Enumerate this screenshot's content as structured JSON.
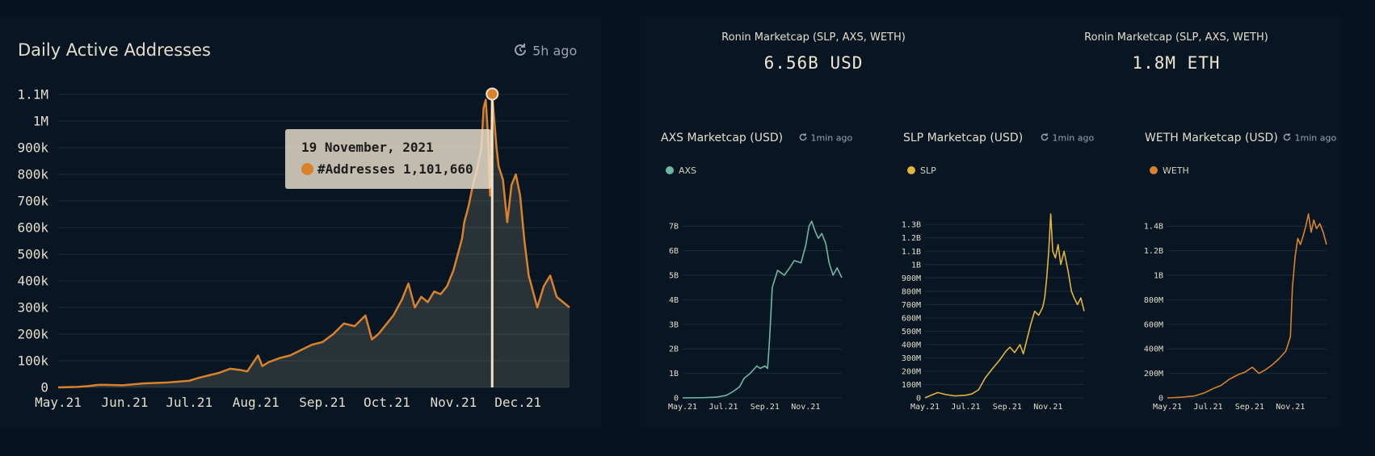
{
  "main_chart": {
    "title": "Daily Active Addresses",
    "refresh": "5h ago",
    "tooltip": {
      "date": "19 November, 2021",
      "series": "#Addresses",
      "value": "1,101,660"
    }
  },
  "kpis": [
    {
      "label": "Ronin Marketcap (SLP, AXS, WETH)",
      "value": "6.56B USD"
    },
    {
      "label": "Ronin Marketcap (SLP, AXS, WETH)",
      "value": "1.8M ETH"
    }
  ],
  "small_charts": [
    {
      "title": "AXS Marketcap (USD)",
      "refresh": "1min ago",
      "legend": "AXS"
    },
    {
      "title": "SLP Marketcap (USD)",
      "refresh": "1min ago",
      "legend": "SLP"
    },
    {
      "title": "WETH Marketcap (USD)",
      "refresh": "1min ago",
      "legend": "WETH"
    }
  ],
  "colors": {
    "addresses": "#d9822b",
    "axs": "#6fb8a0",
    "slp": "#e3b43a",
    "weth": "#d9822b",
    "grid": "#1c2c3a",
    "text": "#e6dccb"
  },
  "chart_data": [
    {
      "type": "area",
      "title": "Daily Active Addresses",
      "x_ticks": [
        "May.21",
        "Jun.21",
        "Jul.21",
        "Aug.21",
        "Sep.21",
        "Oct.21",
        "Nov.21",
        "Dec.21"
      ],
      "y_ticks": [
        "0",
        "100k",
        "200k",
        "300k",
        "400k",
        "500k",
        "600k",
        "700k",
        "800k",
        "900k",
        "1M",
        "1.1M"
      ],
      "ylim": [
        0,
        1100000
      ],
      "xlim": [
        "2021-05-01",
        "2021-12-25"
      ],
      "grid": true,
      "series": [
        {
          "name": "#Addresses",
          "x": [
            "2021-05-01",
            "2021-05-10",
            "2021-05-15",
            "2021-05-20",
            "2021-05-31",
            "2021-06-10",
            "2021-06-20",
            "2021-07-01",
            "2021-07-05",
            "2021-07-10",
            "2021-07-15",
            "2021-07-20",
            "2021-07-25",
            "2021-07-28",
            "2021-08-02",
            "2021-08-04",
            "2021-08-07",
            "2021-08-12",
            "2021-08-17",
            "2021-08-22",
            "2021-08-27",
            "2021-09-01",
            "2021-09-06",
            "2021-09-11",
            "2021-09-16",
            "2021-09-21",
            "2021-09-24",
            "2021-09-27",
            "2021-10-01",
            "2021-10-04",
            "2021-10-08",
            "2021-10-11",
            "2021-10-14",
            "2021-10-17",
            "2021-10-20",
            "2021-10-23",
            "2021-10-26",
            "2021-10-29",
            "2021-11-01",
            "2021-11-03",
            "2021-11-05",
            "2021-11-06",
            "2021-11-08",
            "2021-11-10",
            "2021-11-12",
            "2021-11-14",
            "2021-11-15",
            "2021-11-16",
            "2021-11-17",
            "2021-11-18",
            "2021-11-19",
            "2021-11-21",
            "2021-11-22",
            "2021-11-24",
            "2021-11-26",
            "2021-11-28",
            "2021-11-30",
            "2021-12-02",
            "2021-12-04",
            "2021-12-06",
            "2021-12-08",
            "2021-12-10",
            "2021-12-13",
            "2021-12-16",
            "2021-12-19",
            "2021-12-22",
            "2021-12-25"
          ],
          "y": [
            0,
            2000,
            5000,
            10000,
            8000,
            15000,
            18000,
            25000,
            35000,
            45000,
            55000,
            70000,
            65000,
            60000,
            120000,
            80000,
            95000,
            110000,
            120000,
            140000,
            160000,
            170000,
            200000,
            240000,
            230000,
            270000,
            180000,
            200000,
            240000,
            270000,
            330000,
            390000,
            300000,
            340000,
            320000,
            360000,
            350000,
            380000,
            440000,
            500000,
            560000,
            620000,
            680000,
            760000,
            820000,
            900000,
            1050000,
            1080000,
            950000,
            720000,
            1101660,
            900000,
            830000,
            780000,
            620000,
            760000,
            800000,
            720000,
            550000,
            420000,
            360000,
            300000,
            380000,
            420000,
            340000,
            320000,
            300000
          ]
        }
      ]
    },
    {
      "type": "line",
      "title": "AXS Marketcap (USD)",
      "x_ticks": [
        "May.21",
        "Jul.21",
        "Sep.21",
        "Nov.21"
      ],
      "y_ticks": [
        "0",
        "1B",
        "2B",
        "3B",
        "4B",
        "5B",
        "6B",
        "7B"
      ],
      "ylim": [
        0,
        7500000000
      ],
      "xlim": [
        "2021-05-01",
        "2021-12-25"
      ],
      "grid": true,
      "series": [
        {
          "name": "AXS",
          "x": [
            "2021-05-01",
            "2021-06-01",
            "2021-06-20",
            "2021-07-05",
            "2021-07-15",
            "2021-07-25",
            "2021-08-01",
            "2021-08-10",
            "2021-08-20",
            "2021-08-25",
            "2021-09-01",
            "2021-09-05",
            "2021-09-08",
            "2021-09-12",
            "2021-09-20",
            "2021-09-30",
            "2021-10-08",
            "2021-10-15",
            "2021-10-25",
            "2021-11-01",
            "2021-11-06",
            "2021-11-10",
            "2021-11-15",
            "2021-11-20",
            "2021-11-25",
            "2021-12-01",
            "2021-12-06",
            "2021-12-12",
            "2021-12-18",
            "2021-12-25"
          ],
          "y": [
            0,
            10000000,
            30000000,
            100000000,
            250000000,
            450000000,
            800000000,
            1000000000,
            1300000000,
            1200000000,
            1300000000,
            1200000000,
            2400000000,
            4500000000,
            5200000000,
            5000000000,
            5300000000,
            5600000000,
            5500000000,
            6200000000,
            7000000000,
            7200000000,
            6800000000,
            6500000000,
            6700000000,
            6300000000,
            5500000000,
            5000000000,
            5300000000,
            4900000000
          ]
        }
      ]
    },
    {
      "type": "line",
      "title": "SLP Marketcap (USD)",
      "x_ticks": [
        "May.21",
        "Jul.21",
        "Sep.21",
        "Nov.21"
      ],
      "y_ticks": [
        "0",
        "100M",
        "200M",
        "300M",
        "400M",
        "500M",
        "600M",
        "700M",
        "800M",
        "900M",
        "1B",
        "1.1B",
        "1.2B",
        "1.3B"
      ],
      "ylim": [
        0,
        1380000000
      ],
      "xlim": [
        "2021-05-01",
        "2021-12-25"
      ],
      "grid": true,
      "series": [
        {
          "name": "SLP",
          "x": [
            "2021-05-01",
            "2021-05-10",
            "2021-05-20",
            "2021-06-01",
            "2021-06-15",
            "2021-07-01",
            "2021-07-10",
            "2021-07-20",
            "2021-07-30",
            "2021-08-10",
            "2021-08-20",
            "2021-08-30",
            "2021-09-05",
            "2021-09-12",
            "2021-09-20",
            "2021-09-25",
            "2021-10-01",
            "2021-10-06",
            "2021-10-12",
            "2021-10-18",
            "2021-10-24",
            "2021-10-27",
            "2021-10-30",
            "2021-11-02",
            "2021-11-05",
            "2021-11-08",
            "2021-11-12",
            "2021-11-16",
            "2021-11-20",
            "2021-11-25",
            "2021-12-01",
            "2021-12-06",
            "2021-12-10",
            "2021-12-15",
            "2021-12-20",
            "2021-12-25"
          ],
          "y": [
            0,
            20000000,
            40000000,
            25000000,
            15000000,
            20000000,
            30000000,
            60000000,
            150000000,
            220000000,
            280000000,
            350000000,
            380000000,
            340000000,
            400000000,
            330000000,
            450000000,
            550000000,
            650000000,
            620000000,
            680000000,
            750000000,
            900000000,
            1100000000,
            1380000000,
            1100000000,
            1050000000,
            1150000000,
            1000000000,
            1100000000,
            950000000,
            800000000,
            750000000,
            700000000,
            750000000,
            650000000
          ]
        }
      ]
    },
    {
      "type": "line",
      "title": "WETH Marketcap (USD)",
      "x_ticks": [
        "May.21",
        "Jul.21",
        "Sep.21",
        "Nov.21"
      ],
      "y_ticks": [
        "0",
        "200M",
        "400M",
        "600M",
        "800M",
        "1B",
        "1.2B",
        "1.4B"
      ],
      "ylim": [
        0,
        1500000000
      ],
      "xlim": [
        "2021-05-01",
        "2021-12-25"
      ],
      "grid": true,
      "series": [
        {
          "name": "WETH",
          "x": [
            "2021-05-01",
            "2021-05-20",
            "2021-06-10",
            "2021-06-25",
            "2021-07-10",
            "2021-07-20",
            "2021-08-01",
            "2021-08-15",
            "2021-08-25",
            "2021-09-05",
            "2021-09-15",
            "2021-09-25",
            "2021-10-05",
            "2021-10-15",
            "2021-10-25",
            "2021-10-28",
            "2021-11-01",
            "2021-11-04",
            "2021-11-08",
            "2021-11-12",
            "2021-11-16",
            "2021-11-20",
            "2021-11-24",
            "2021-11-28",
            "2021-12-02",
            "2021-12-06",
            "2021-12-10",
            "2021-12-15",
            "2021-12-20",
            "2021-12-25"
          ],
          "y": [
            0,
            5000000,
            15000000,
            40000000,
            80000000,
            100000000,
            150000000,
            190000000,
            210000000,
            250000000,
            200000000,
            230000000,
            270000000,
            320000000,
            380000000,
            430000000,
            500000000,
            900000000,
            1150000000,
            1300000000,
            1250000000,
            1320000000,
            1400000000,
            1500000000,
            1350000000,
            1450000000,
            1380000000,
            1420000000,
            1350000000,
            1250000000
          ]
        }
      ]
    }
  ]
}
